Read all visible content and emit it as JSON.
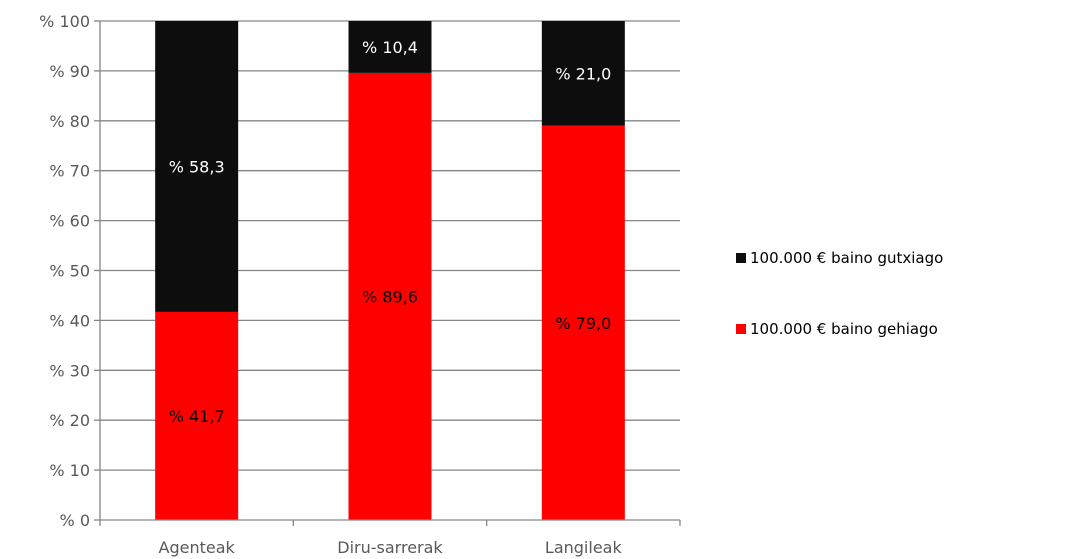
{
  "chart_data": {
    "type": "bar",
    "stacked": true,
    "categories": [
      "Agenteak",
      "Diru-sarrerak",
      "Langileak"
    ],
    "series": [
      {
        "name": "100.000 € baino gehiago",
        "values": [
          41.7,
          89.6,
          79.0
        ],
        "color": "#ff0000",
        "labels": [
          "% 41,7",
          "% 89,6",
          "% 79,0"
        ]
      },
      {
        "name": "100.000 € baino gutxiago",
        "values": [
          58.3,
          10.4,
          21.0
        ],
        "color": "#0d0d0d",
        "labels": [
          "% 58,3",
          "% 10,4",
          "% 21,0"
        ]
      }
    ],
    "ylim": [
      0,
      100
    ],
    "yticks": [
      0,
      10,
      20,
      30,
      40,
      50,
      60,
      70,
      80,
      90,
      100
    ],
    "ytick_labels": [
      "% 0",
      "% 10",
      "% 20",
      "% 30",
      "% 40",
      "% 50",
      "% 60",
      "% 70",
      "% 80",
      "% 90",
      "% 100"
    ],
    "grid": true,
    "legend": {
      "position": "right",
      "items": [
        "100.000 € baino gutxiago",
        "100.000 € baino gehiago"
      ]
    },
    "title": "",
    "xlabel": "",
    "ylabel": ""
  }
}
